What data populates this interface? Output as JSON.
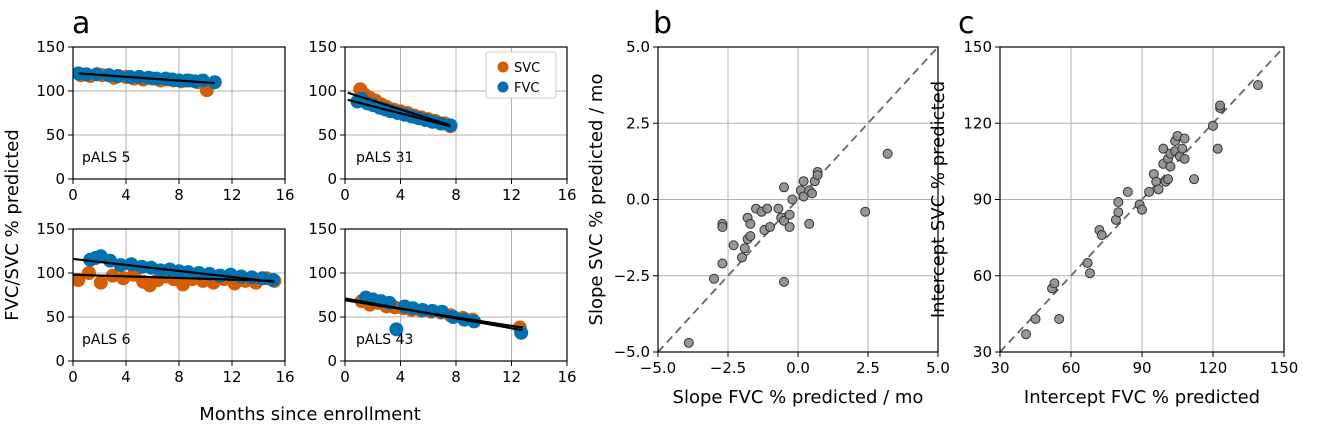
{
  "figure": {
    "panel_labels": [
      "a",
      "b",
      "c"
    ],
    "shared_xlabel": "Months since enrollment",
    "shared_ylabel": "FVC/SVC % predicted"
  },
  "legend": {
    "entries": [
      {
        "label": "SVC",
        "color": "#d55e00"
      },
      {
        "label": "FVC",
        "color": "#0072b2"
      }
    ]
  },
  "chart_data": [
    {
      "id": "a1",
      "type": "scatter",
      "annotation": "pALS 5",
      "xlim": [
        0,
        16
      ],
      "ylim": [
        0,
        150
      ],
      "xticks": [
        0,
        4,
        8,
        12,
        16
      ],
      "yticks": [
        0,
        50,
        100,
        150
      ],
      "series": [
        {
          "name": "SVC",
          "color": "#d55e00",
          "points": [
            [
              0.6,
              118
            ],
            [
              1.3,
              117
            ],
            [
              2.2,
              118
            ],
            [
              3.1,
              115
            ],
            [
              4.0,
              116
            ],
            [
              4.6,
              114
            ],
            [
              5.3,
              113
            ],
            [
              6.0,
              114
            ],
            [
              6.6,
              112
            ],
            [
              7.1,
              113
            ],
            [
              7.6,
              112
            ],
            [
              8.2,
              111
            ],
            [
              8.8,
              112
            ],
            [
              9.4,
              110
            ],
            [
              10.1,
              101
            ]
          ]
        },
        {
          "name": "FVC",
          "color": "#0072b2",
          "points": [
            [
              0.4,
              120
            ],
            [
              1.0,
              119
            ],
            [
              1.8,
              119
            ],
            [
              2.7,
              118
            ],
            [
              3.4,
              117
            ],
            [
              4.3,
              116
            ],
            [
              5.0,
              116
            ],
            [
              5.7,
              115
            ],
            [
              6.3,
              114
            ],
            [
              7.0,
              114
            ],
            [
              7.5,
              113
            ],
            [
              8.0,
              112
            ],
            [
              8.6,
              112
            ],
            [
              9.2,
              111
            ],
            [
              9.8,
              112
            ],
            [
              10.7,
              110
            ]
          ]
        }
      ],
      "fits": [
        {
          "x": [
            0.4,
            10.7
          ],
          "y": [
            120.0,
            109.0
          ]
        }
      ]
    },
    {
      "id": "a2",
      "type": "scatter",
      "annotation": "pALS 31",
      "xlim": [
        0,
        16
      ],
      "ylim": [
        0,
        150
      ],
      "xticks": [
        0,
        4,
        8,
        12,
        16
      ],
      "yticks": [
        0,
        50,
        100,
        150
      ],
      "series": [
        {
          "name": "SVC",
          "color": "#d55e00",
          "points": [
            [
              1.1,
              102
            ],
            [
              1.4,
              96
            ],
            [
              1.8,
              92
            ],
            [
              2.2,
              89
            ],
            [
              2.6,
              85
            ],
            [
              3.0,
              82
            ],
            [
              3.5,
              79
            ],
            [
              4.0,
              77
            ],
            [
              4.5,
              75
            ],
            [
              5.0,
              72
            ],
            [
              5.5,
              70
            ],
            [
              6.0,
              68
            ],
            [
              6.5,
              66
            ],
            [
              7.2,
              63
            ],
            [
              7.6,
              60
            ]
          ]
        },
        {
          "name": "FVC",
          "color": "#0072b2",
          "points": [
            [
              0.9,
              88
            ],
            [
              1.2,
              91
            ],
            [
              1.6,
              86
            ],
            [
              2.0,
              84
            ],
            [
              2.5,
              81
            ],
            [
              2.9,
              79
            ],
            [
              3.3,
              77
            ],
            [
              3.8,
              75
            ],
            [
              4.3,
              73
            ],
            [
              4.8,
              71
            ],
            [
              5.3,
              69
            ],
            [
              5.8,
              67
            ],
            [
              6.3,
              65
            ],
            [
              6.9,
              63
            ],
            [
              7.6,
              61
            ]
          ]
        }
      ],
      "fits": [
        {
          "x": [
            0.2,
            7.6
          ],
          "y": [
            98.0,
            61.0
          ]
        },
        {
          "x": [
            0.2,
            7.6
          ],
          "y": [
            90.0,
            60.0
          ]
        }
      ]
    },
    {
      "id": "a3",
      "type": "scatter",
      "annotation": "pALS 6",
      "xlim": [
        0,
        16
      ],
      "ylim": [
        0,
        150
      ],
      "xticks": [
        0,
        4,
        8,
        12,
        16
      ],
      "yticks": [
        0,
        50,
        100,
        150
      ],
      "series": [
        {
          "name": "SVC",
          "color": "#d55e00",
          "points": [
            [
              0.4,
              92
            ],
            [
              1.2,
              100
            ],
            [
              2.1,
              89
            ],
            [
              3.0,
              97
            ],
            [
              3.8,
              94
            ],
            [
              4.6,
              98
            ],
            [
              5.3,
              90
            ],
            [
              5.8,
              86
            ],
            [
              6.4,
              92
            ],
            [
              7.0,
              96
            ],
            [
              7.6,
              93
            ],
            [
              8.3,
              87
            ],
            [
              9.0,
              93
            ],
            [
              9.8,
              91
            ],
            [
              10.6,
              89
            ],
            [
              11.4,
              93
            ],
            [
              12.2,
              88
            ],
            [
              13.0,
              91
            ],
            [
              13.8,
              89
            ],
            [
              14.6,
              94
            ],
            [
              15.2,
              91
            ]
          ]
        },
        {
          "name": "FVC",
          "color": "#0072b2",
          "points": [
            [
              1.3,
              115
            ],
            [
              1.7,
              117
            ],
            [
              2.1,
              119
            ],
            [
              2.8,
              114
            ],
            [
              3.6,
              109
            ],
            [
              4.4,
              110
            ],
            [
              5.2,
              107
            ],
            [
              5.9,
              106
            ],
            [
              6.6,
              103
            ],
            [
              7.3,
              104
            ],
            [
              8.0,
              102
            ],
            [
              8.7,
              101
            ],
            [
              9.5,
              100
            ],
            [
              10.3,
              99
            ],
            [
              11.1,
              97
            ],
            [
              11.9,
              98
            ],
            [
              12.7,
              96
            ],
            [
              13.5,
              95
            ],
            [
              14.3,
              94
            ],
            [
              15.1,
              92
            ]
          ]
        }
      ],
      "fits": [
        {
          "x": [
            0.0,
            15.2
          ],
          "y": [
            116.0,
            90.0
          ]
        },
        {
          "x": [
            0.0,
            15.2
          ],
          "y": [
            98.0,
            91.0
          ]
        }
      ]
    },
    {
      "id": "a4",
      "type": "scatter",
      "annotation": "pALS 43",
      "xlim": [
        0,
        16
      ],
      "ylim": [
        0,
        150
      ],
      "xticks": [
        0,
        4,
        8,
        12,
        16
      ],
      "yticks": [
        0,
        50,
        100,
        150
      ],
      "series": [
        {
          "name": "SVC",
          "color": "#d55e00",
          "points": [
            [
              1.2,
              68
            ],
            [
              1.8,
              64
            ],
            [
              2.4,
              66
            ],
            [
              3.0,
              62
            ],
            [
              3.6,
              61
            ],
            [
              4.2,
              60
            ],
            [
              4.8,
              58
            ],
            [
              5.5,
              57
            ],
            [
              6.2,
              56
            ],
            [
              6.9,
              55
            ],
            [
              7.6,
              52
            ],
            [
              8.5,
              49
            ],
            [
              9.2,
              47
            ],
            [
              12.6,
              38
            ]
          ]
        },
        {
          "name": "FVC",
          "color": "#0072b2",
          "points": [
            [
              1.5,
              72
            ],
            [
              2.0,
              70
            ],
            [
              2.6,
              68
            ],
            [
              3.2,
              66
            ],
            [
              3.7,
              36
            ],
            [
              4.3,
              62
            ],
            [
              4.9,
              60
            ],
            [
              5.6,
              58
            ],
            [
              6.3,
              57
            ],
            [
              7.0,
              56
            ],
            [
              7.8,
              50
            ],
            [
              8.6,
              47
            ],
            [
              9.3,
              45
            ],
            [
              12.7,
              32
            ]
          ]
        }
      ],
      "fits": [
        {
          "x": [
            0.0,
            12.8
          ],
          "y": [
            71.0,
            35.0
          ]
        },
        {
          "x": [
            0.0,
            12.8
          ],
          "y": [
            69.0,
            38.0
          ]
        }
      ]
    },
    {
      "id": "b",
      "type": "scatter",
      "xlabel": "Slope FVC % predicted / mo",
      "ylabel": "Slope SVC % predicted / mo",
      "xlim": [
        -5,
        5
      ],
      "ylim": [
        -5,
        5
      ],
      "xticks": [
        -5,
        -2.5,
        0,
        2.5,
        5
      ],
      "yticks": [
        -5,
        -2.5,
        0,
        2.5,
        5
      ],
      "tick_labels": [
        "−5.0",
        "−2.5",
        "0.0",
        "2.5",
        "5.0"
      ],
      "series": [
        {
          "name": "patients",
          "color": "#8c8c8c",
          "points": [
            [
              -3.9,
              -4.7
            ],
            [
              -3.0,
              -2.6
            ],
            [
              -2.7,
              -2.1
            ],
            [
              -2.7,
              -0.8
            ],
            [
              -2.7,
              -0.9
            ],
            [
              -2.3,
              -1.5
            ],
            [
              -2.0,
              -1.9
            ],
            [
              -1.9,
              -1.6
            ],
            [
              -1.8,
              -1.3
            ],
            [
              -1.8,
              -0.6
            ],
            [
              -1.7,
              -0.8
            ],
            [
              -1.7,
              -1.2
            ],
            [
              -1.5,
              -0.3
            ],
            [
              -1.3,
              -0.4
            ],
            [
              -1.2,
              -1.0
            ],
            [
              -1.1,
              -0.3
            ],
            [
              -1.0,
              -0.9
            ],
            [
              -0.7,
              -0.3
            ],
            [
              -0.6,
              -0.6
            ],
            [
              -0.5,
              -0.7
            ],
            [
              -0.5,
              -2.7
            ],
            [
              -0.5,
              0.4
            ],
            [
              -0.3,
              -0.9
            ],
            [
              -0.3,
              -0.5
            ],
            [
              -0.2,
              0.0
            ],
            [
              0.1,
              0.3
            ],
            [
              0.2,
              0.6
            ],
            [
              0.2,
              0.1
            ],
            [
              0.4,
              0.3
            ],
            [
              0.4,
              -0.8
            ],
            [
              0.5,
              0.2
            ],
            [
              0.6,
              0.6
            ],
            [
              0.7,
              0.9
            ],
            [
              0.7,
              0.8
            ],
            [
              2.4,
              -0.4
            ],
            [
              3.2,
              1.5
            ]
          ]
        }
      ],
      "identity_line": true
    },
    {
      "id": "c",
      "type": "scatter",
      "xlabel": "Intercept FVC % predicted",
      "ylabel": "Intercept SVC % predicted",
      "xlim": [
        30,
        150
      ],
      "ylim": [
        30,
        150
      ],
      "xticks": [
        30,
        60,
        90,
        120,
        150
      ],
      "yticks": [
        30,
        60,
        90,
        120,
        150
      ],
      "series": [
        {
          "name": "patients",
          "color": "#8c8c8c",
          "points": [
            [
              41,
              37
            ],
            [
              45,
              43
            ],
            [
              52,
              55
            ],
            [
              53,
              57
            ],
            [
              55,
              43
            ],
            [
              67,
              65
            ],
            [
              68,
              61
            ],
            [
              72,
              78
            ],
            [
              73,
              76
            ],
            [
              79,
              82
            ],
            [
              80,
              85
            ],
            [
              80,
              89
            ],
            [
              84,
              93
            ],
            [
              89,
              88
            ],
            [
              90,
              86
            ],
            [
              93,
              93
            ],
            [
              95,
              100
            ],
            [
              96,
              97
            ],
            [
              97,
              94
            ],
            [
              99,
              110
            ],
            [
              99,
              104
            ],
            [
              100,
              97
            ],
            [
              101,
              98
            ],
            [
              101,
              106
            ],
            [
              102,
              103
            ],
            [
              102,
              108
            ],
            [
              104,
              113
            ],
            [
              104,
              109
            ],
            [
              105,
              115
            ],
            [
              106,
              107
            ],
            [
              107,
              110
            ],
            [
              108,
              114
            ],
            [
              108,
              106
            ],
            [
              112,
              98
            ],
            [
              120,
              119
            ],
            [
              122,
              110
            ],
            [
              123,
              126
            ],
            [
              123,
              127
            ],
            [
              139,
              135
            ]
          ]
        }
      ],
      "identity_line": true
    }
  ]
}
